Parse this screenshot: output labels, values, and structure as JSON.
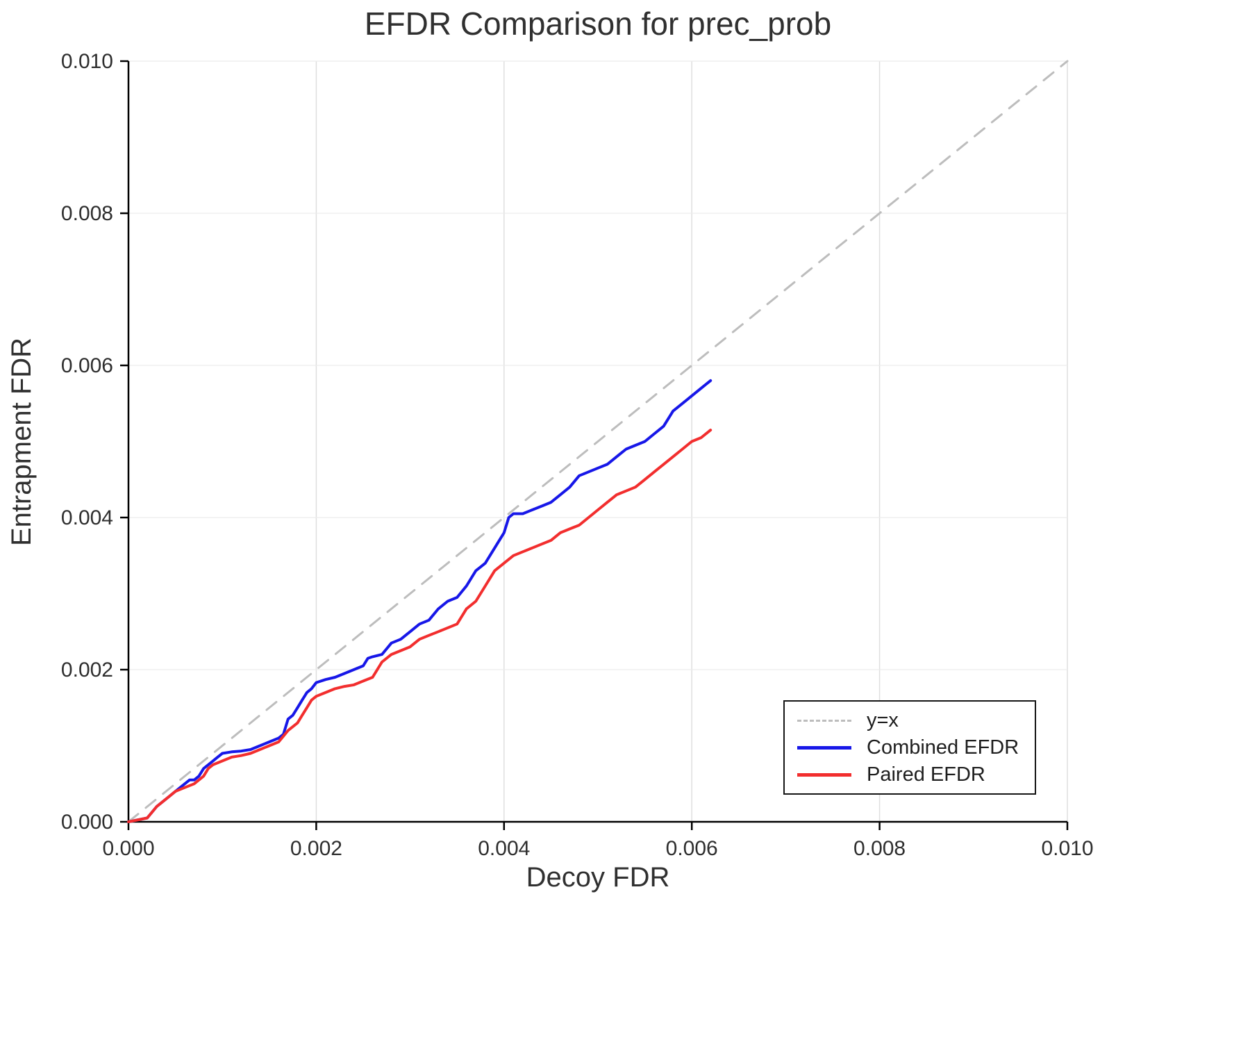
{
  "page": {
    "background": "#ffffff"
  },
  "chart_data": {
    "type": "line",
    "title": "EFDR Comparison for prec_prob",
    "xlabel": "Decoy FDR",
    "ylabel": "Entrapment FDR",
    "xlim": [
      0.0,
      0.01
    ],
    "ylim": [
      0.0,
      0.01
    ],
    "xticks": [
      0.0,
      0.002,
      0.004,
      0.006,
      0.008,
      0.01
    ],
    "yticks": [
      0.0,
      0.002,
      0.004,
      0.006,
      0.008,
      0.01
    ],
    "tick_format_decimals": 3,
    "grid": true,
    "legend_position": "bottom-right",
    "colors": {
      "grid_vertical": "#dedede",
      "grid_horizontal": "#ececec",
      "axis": "#000000",
      "text": "#303030"
    },
    "series": [
      {
        "name": "y=x",
        "color": "#bdbdbd",
        "style": "dashed",
        "width": 3,
        "points": [
          [
            0.0,
            0.0
          ],
          [
            0.01,
            0.01
          ]
        ]
      },
      {
        "name": "Combined EFDR",
        "color": "#1717e8",
        "style": "solid",
        "width": 4,
        "points": [
          [
            0.0,
            0.0
          ],
          [
            0.0002,
            5e-05
          ],
          [
            0.0003,
            0.0002
          ],
          [
            0.0004,
            0.0003
          ],
          [
            0.0005,
            0.0004
          ],
          [
            0.0006,
            0.0005
          ],
          [
            0.00065,
            0.00055
          ],
          [
            0.0007,
            0.00055
          ],
          [
            0.00075,
            0.0006
          ],
          [
            0.0008,
            0.0007
          ],
          [
            0.00085,
            0.00075
          ],
          [
            0.0009,
            0.0008
          ],
          [
            0.00095,
            0.00085
          ],
          [
            0.001,
            0.0009
          ],
          [
            0.0011,
            0.00092
          ],
          [
            0.0012,
            0.00093
          ],
          [
            0.0013,
            0.00095
          ],
          [
            0.0014,
            0.001
          ],
          [
            0.0015,
            0.00105
          ],
          [
            0.0016,
            0.0011
          ],
          [
            0.00165,
            0.00115
          ],
          [
            0.0017,
            0.00135
          ],
          [
            0.00175,
            0.0014
          ],
          [
            0.0018,
            0.0015
          ],
          [
            0.00185,
            0.0016
          ],
          [
            0.0019,
            0.0017
          ],
          [
            0.00195,
            0.00175
          ],
          [
            0.002,
            0.00183
          ],
          [
            0.0021,
            0.00187
          ],
          [
            0.0022,
            0.0019
          ],
          [
            0.0023,
            0.00195
          ],
          [
            0.0024,
            0.002
          ],
          [
            0.0025,
            0.00205
          ],
          [
            0.00255,
            0.00215
          ],
          [
            0.0026,
            0.00217
          ],
          [
            0.0027,
            0.0022
          ],
          [
            0.0028,
            0.00235
          ],
          [
            0.0029,
            0.0024
          ],
          [
            0.003,
            0.0025
          ],
          [
            0.0031,
            0.0026
          ],
          [
            0.0032,
            0.00265
          ],
          [
            0.0033,
            0.0028
          ],
          [
            0.0034,
            0.0029
          ],
          [
            0.0035,
            0.00295
          ],
          [
            0.0036,
            0.0031
          ],
          [
            0.0037,
            0.0033
          ],
          [
            0.00375,
            0.00335
          ],
          [
            0.0038,
            0.0034
          ],
          [
            0.0039,
            0.0036
          ],
          [
            0.00395,
            0.0037
          ],
          [
            0.004,
            0.0038
          ],
          [
            0.00405,
            0.004
          ],
          [
            0.0041,
            0.00405
          ],
          [
            0.0042,
            0.00405
          ],
          [
            0.0043,
            0.0041
          ],
          [
            0.0044,
            0.00415
          ],
          [
            0.0045,
            0.0042
          ],
          [
            0.0046,
            0.0043
          ],
          [
            0.0047,
            0.0044
          ],
          [
            0.0048,
            0.00455
          ],
          [
            0.0049,
            0.0046
          ],
          [
            0.005,
            0.00465
          ],
          [
            0.0051,
            0.0047
          ],
          [
            0.0052,
            0.0048
          ],
          [
            0.0053,
            0.0049
          ],
          [
            0.0054,
            0.00495
          ],
          [
            0.0055,
            0.005
          ],
          [
            0.0056,
            0.0051
          ],
          [
            0.0057,
            0.0052
          ],
          [
            0.0058,
            0.0054
          ],
          [
            0.0059,
            0.0055
          ],
          [
            0.006,
            0.0056
          ],
          [
            0.0061,
            0.0057
          ],
          [
            0.0062,
            0.0058
          ]
        ]
      },
      {
        "name": "Paired EFDR",
        "color": "#f22e2e",
        "style": "solid",
        "width": 4,
        "points": [
          [
            0.0,
            0.0
          ],
          [
            0.0002,
            5e-05
          ],
          [
            0.0003,
            0.0002
          ],
          [
            0.0004,
            0.0003
          ],
          [
            0.0005,
            0.0004
          ],
          [
            0.0006,
            0.00045
          ],
          [
            0.0007,
            0.0005
          ],
          [
            0.00075,
            0.00055
          ],
          [
            0.0008,
            0.0006
          ],
          [
            0.00085,
            0.0007
          ],
          [
            0.0009,
            0.00075
          ],
          [
            0.001,
            0.0008
          ],
          [
            0.0011,
            0.00085
          ],
          [
            0.0012,
            0.00087
          ],
          [
            0.0013,
            0.0009
          ],
          [
            0.0014,
            0.00095
          ],
          [
            0.0015,
            0.001
          ],
          [
            0.0016,
            0.00105
          ],
          [
            0.0017,
            0.0012
          ],
          [
            0.0018,
            0.0013
          ],
          [
            0.00185,
            0.0014
          ],
          [
            0.0019,
            0.0015
          ],
          [
            0.00195,
            0.0016
          ],
          [
            0.002,
            0.00165
          ],
          [
            0.0021,
            0.0017
          ],
          [
            0.0022,
            0.00175
          ],
          [
            0.0023,
            0.00178
          ],
          [
            0.0024,
            0.0018
          ],
          [
            0.0025,
            0.00185
          ],
          [
            0.0026,
            0.0019
          ],
          [
            0.0027,
            0.0021
          ],
          [
            0.0028,
            0.0022
          ],
          [
            0.0029,
            0.00225
          ],
          [
            0.003,
            0.0023
          ],
          [
            0.0031,
            0.0024
          ],
          [
            0.0032,
            0.00245
          ],
          [
            0.0033,
            0.0025
          ],
          [
            0.0034,
            0.00255
          ],
          [
            0.0035,
            0.0026
          ],
          [
            0.0036,
            0.0028
          ],
          [
            0.0037,
            0.0029
          ],
          [
            0.0038,
            0.0031
          ],
          [
            0.0039,
            0.0033
          ],
          [
            0.004,
            0.0034
          ],
          [
            0.0041,
            0.0035
          ],
          [
            0.0042,
            0.00355
          ],
          [
            0.0043,
            0.0036
          ],
          [
            0.0044,
            0.00365
          ],
          [
            0.0045,
            0.0037
          ],
          [
            0.0046,
            0.0038
          ],
          [
            0.0047,
            0.00385
          ],
          [
            0.0048,
            0.0039
          ],
          [
            0.0049,
            0.004
          ],
          [
            0.005,
            0.0041
          ],
          [
            0.0051,
            0.0042
          ],
          [
            0.0052,
            0.0043
          ],
          [
            0.0053,
            0.00435
          ],
          [
            0.0054,
            0.0044
          ],
          [
            0.0055,
            0.0045
          ],
          [
            0.0056,
            0.0046
          ],
          [
            0.0057,
            0.0047
          ],
          [
            0.0058,
            0.0048
          ],
          [
            0.0059,
            0.0049
          ],
          [
            0.006,
            0.005
          ],
          [
            0.0061,
            0.00505
          ],
          [
            0.0062,
            0.00515
          ]
        ]
      }
    ]
  }
}
